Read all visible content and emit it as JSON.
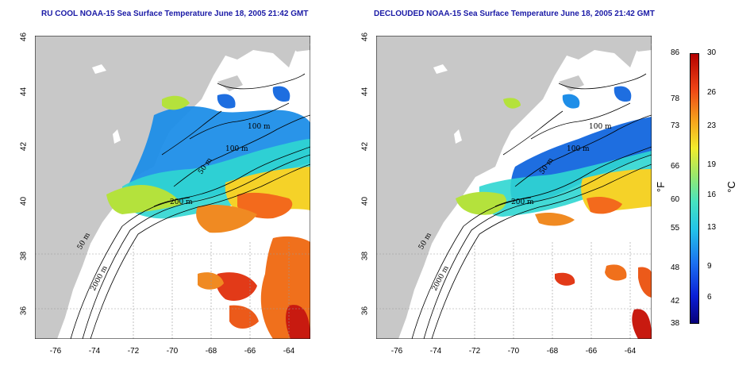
{
  "titles": {
    "left": "RU COOL NOAA-15 Sea Surface Temperature June 18, 2005 21:42 GMT",
    "right": "DECLOUDED NOAA-15 Sea Surface Temperature June 18, 2005 21:42 GMT"
  },
  "lat_ticks": [
    "36",
    "38",
    "40",
    "42",
    "44",
    "46"
  ],
  "lon_ticks": [
    "-76",
    "-74",
    "-72",
    "-70",
    "-68",
    "-66",
    "-64"
  ],
  "contours": {
    "c1": "100 m",
    "c2": "100 m",
    "c3": "50 m",
    "c4": "200 m",
    "c5": "50 m",
    "c6": "2000 m"
  },
  "colorbar": {
    "fahrenheit": [
      "86",
      "78",
      "73",
      "66",
      "60",
      "55",
      "48",
      "42",
      "38"
    ],
    "celsius": [
      "30",
      "26",
      "23",
      "19",
      "16",
      "13",
      "9",
      "6"
    ],
    "unit_f": "°F",
    "unit_c": "°C"
  },
  "colors": {
    "land": "#c8c8c8",
    "title": "#1a1aa6",
    "contour": "#000000"
  }
}
